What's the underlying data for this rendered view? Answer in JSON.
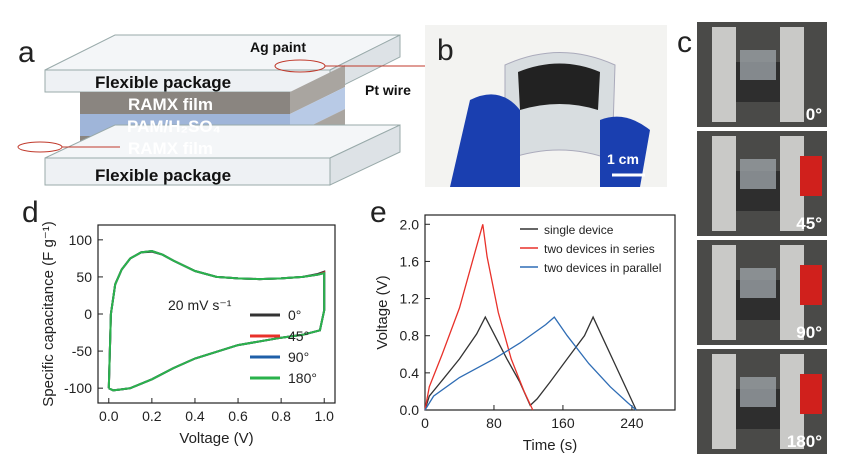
{
  "panels": {
    "a": {
      "letter": "a",
      "ag_paint": "Ag paint",
      "pt_wire": "Pt wire",
      "top_package": "Flexible package",
      "top_film": "RAMX film",
      "electrolyte": "PAM/H₂SO₄",
      "bottom_film": "RAMX film",
      "bottom_package": "Flexible package"
    },
    "b": {
      "letter": "b",
      "scale": "1 cm"
    },
    "c": {
      "letter": "c",
      "angles": [
        "0°",
        "45°",
        "90°",
        "180°"
      ]
    },
    "d": {
      "letter": "d"
    },
    "e": {
      "letter": "e"
    }
  },
  "chart_data": [
    {
      "type": "line",
      "xlabel": "Voltage (V)",
      "ylabel": "Specific capacitance (F g⁻¹)",
      "annotation": "20 mV s⁻¹",
      "xlim": [
        -0.05,
        1.05
      ],
      "xticks": [
        {
          "value": 0,
          "label": "0.0"
        },
        0.2,
        0.4,
        0.6,
        0.8,
        {
          "value": 1,
          "label": "1.0"
        }
      ],
      "ylim": [
        -120,
        120
      ],
      "yticks": [
        -100,
        -50,
        0,
        50,
        100
      ],
      "legend": "lower right",
      "series": [
        {
          "name": "0°",
          "color": "#333333",
          "x": [
            0.0,
            0.01,
            0.03,
            0.06,
            0.1,
            0.15,
            0.2,
            0.25,
            0.3,
            0.4,
            0.5,
            0.6,
            0.7,
            0.8,
            0.9,
            0.97,
            1.0,
            1.0,
            0.98,
            0.9,
            0.8,
            0.6,
            0.4,
            0.3,
            0.2,
            0.1,
            0.05,
            0.02,
            0.0
          ],
          "values": [
            -100,
            0,
            40,
            60,
            75,
            83,
            84,
            80,
            72,
            58,
            50,
            48,
            47,
            48,
            50,
            54,
            57,
            5,
            -22,
            -28,
            -32,
            -42,
            -60,
            -73,
            -88,
            -100,
            -102,
            -103,
            -100
          ]
        },
        {
          "name": "45°",
          "color": "#e8312a",
          "x": [
            0.0,
            0.01,
            0.03,
            0.06,
            0.1,
            0.15,
            0.2,
            0.25,
            0.3,
            0.4,
            0.5,
            0.6,
            0.7,
            0.8,
            0.9,
            0.97,
            1.0,
            1.0,
            0.98,
            0.9,
            0.8,
            0.6,
            0.4,
            0.3,
            0.2,
            0.1,
            0.05,
            0.02,
            0.0
          ],
          "values": [
            -100,
            0,
            40,
            60,
            75,
            83,
            85,
            80,
            72,
            58,
            50,
            48,
            47,
            48,
            50,
            53,
            56,
            5,
            -22,
            -28,
            -32,
            -42,
            -60,
            -73,
            -88,
            -100,
            -102,
            -103,
            -100
          ]
        },
        {
          "name": "90°",
          "color": "#1f5fa8",
          "x": [
            0.0,
            0.01,
            0.03,
            0.06,
            0.1,
            0.15,
            0.2,
            0.25,
            0.3,
            0.4,
            0.5,
            0.6,
            0.7,
            0.8,
            0.9,
            0.97,
            1.0,
            1.0,
            0.98,
            0.9,
            0.8,
            0.6,
            0.4,
            0.3,
            0.2,
            0.1,
            0.05,
            0.02,
            0.0
          ],
          "values": [
            -100,
            0,
            40,
            60,
            75,
            83,
            85,
            80,
            72,
            58,
            50,
            48,
            47,
            48,
            50,
            53,
            55,
            5,
            -22,
            -28,
            -32,
            -42,
            -60,
            -73,
            -88,
            -100,
            -102,
            -103,
            -100
          ]
        },
        {
          "name": "180°",
          "color": "#2ab24b",
          "x": [
            0.0,
            0.01,
            0.03,
            0.06,
            0.1,
            0.15,
            0.2,
            0.25,
            0.3,
            0.4,
            0.5,
            0.6,
            0.7,
            0.8,
            0.9,
            0.97,
            1.0,
            1.0,
            0.98,
            0.9,
            0.8,
            0.6,
            0.4,
            0.3,
            0.2,
            0.1,
            0.05,
            0.02,
            0.0
          ],
          "values": [
            -100,
            0,
            40,
            60,
            75,
            83,
            85,
            80,
            72,
            58,
            50,
            48,
            47,
            48,
            50,
            53,
            55,
            5,
            -22,
            -28,
            -32,
            -42,
            -60,
            -73,
            -88,
            -100,
            -102,
            -103,
            -100
          ]
        }
      ]
    },
    {
      "type": "line",
      "xlabel": "Time (s)",
      "ylabel": "Voltage (V)",
      "xlim": [
        0,
        290
      ],
      "xticks": [
        0,
        80,
        160,
        240
      ],
      "ylim": [
        0,
        2.1
      ],
      "yticks": [
        {
          "value": 0,
          "label": "0.0"
        },
        0.4,
        0.8,
        1.2,
        1.6,
        {
          "value": 2,
          "label": "2.0"
        }
      ],
      "legend": "upper right",
      "series": [
        {
          "name": "single device",
          "color": "#333333",
          "x": [
            0,
            5,
            20,
            40,
            60,
            70,
            80,
            95,
            110,
            122,
            130,
            145,
            165,
            185,
            195,
            205,
            220,
            235,
            245
          ],
          "values": [
            0,
            0.15,
            0.32,
            0.55,
            0.82,
            1.0,
            0.82,
            0.55,
            0.3,
            0.05,
            0.12,
            0.3,
            0.55,
            0.8,
            1.0,
            0.8,
            0.5,
            0.2,
            0.0
          ]
        },
        {
          "name": "two devices in series",
          "color": "#e8312a",
          "x": [
            0,
            5,
            20,
            40,
            55,
            67,
            72,
            85,
            100,
            115,
            125
          ],
          "values": [
            0,
            0.25,
            0.6,
            1.1,
            1.6,
            2.0,
            1.65,
            1.05,
            0.55,
            0.2,
            0.0
          ]
        },
        {
          "name": "two devices in parallel",
          "color": "#2f6db5",
          "x": [
            0,
            10,
            40,
            80,
            110,
            140,
            150,
            165,
            190,
            215,
            235,
            245
          ],
          "values": [
            0,
            0.15,
            0.35,
            0.55,
            0.72,
            0.92,
            1.0,
            0.8,
            0.5,
            0.25,
            0.08,
            0.0
          ]
        }
      ]
    }
  ]
}
